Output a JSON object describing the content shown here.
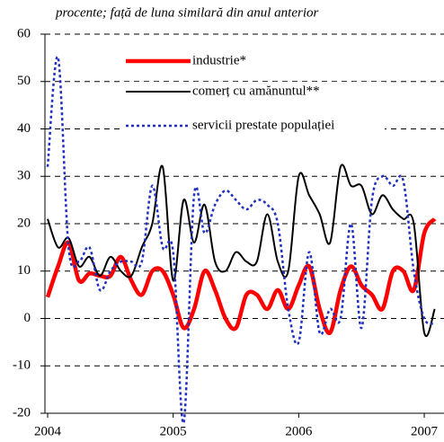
{
  "chart_data": {
    "type": "line",
    "title": "procente; față de luna similară din anul anterior",
    "categories": [
      "2004",
      null,
      null,
      null,
      null,
      null,
      null,
      null,
      null,
      null,
      null,
      null,
      "2005",
      null,
      null,
      null,
      null,
      null,
      null,
      null,
      null,
      null,
      null,
      null,
      "2006",
      null,
      null,
      null,
      null,
      null,
      null,
      null,
      null,
      null,
      null,
      null,
      "2007",
      null
    ],
    "series": [
      {
        "name": "industrie*",
        "color": "#ff0000",
        "linestyle": "solid",
        "linewidth": 4.5,
        "values": [
          4.5,
          11,
          16,
          8,
          9.5,
          9,
          9,
          13,
          8,
          5,
          10,
          10,
          5,
          -2,
          2,
          10,
          6,
          0,
          -2,
          5,
          5,
          2,
          6,
          2,
          7,
          11,
          2,
          -3,
          6,
          11,
          7,
          5,
          2,
          10,
          10,
          6,
          18,
          21
        ]
      },
      {
        "name": "comerț cu amănuntul**",
        "color": "#000000",
        "linestyle": "solid",
        "linewidth": 2,
        "values": [
          21,
          15,
          17,
          11,
          13,
          9,
          13,
          10,
          9,
          15,
          20,
          32,
          8,
          25,
          16,
          24,
          12,
          10,
          14,
          12,
          12,
          22,
          12,
          10,
          30,
          26,
          22,
          16,
          32,
          28,
          28,
          22,
          26,
          23,
          21,
          20,
          -3,
          2
        ]
      },
      {
        "name": "servicii prestate populației",
        "color": "#1f2fbf",
        "linestyle": "dotted",
        "linewidth": 2.5,
        "values": [
          32,
          55,
          15,
          12,
          15,
          6,
          10,
          12,
          12,
          12,
          28,
          15,
          14,
          -22,
          26,
          18,
          24,
          27,
          25,
          23,
          25,
          24,
          20,
          2,
          -5,
          14,
          -3,
          2,
          0,
          20,
          -2,
          25,
          30,
          28,
          29,
          10,
          0,
          -1
        ]
      }
    ],
    "ylim": [
      -20,
      60
    ],
    "yticks": [
      -20,
      -10,
      0,
      10,
      20,
      30,
      40,
      50,
      60
    ],
    "grid": true
  }
}
